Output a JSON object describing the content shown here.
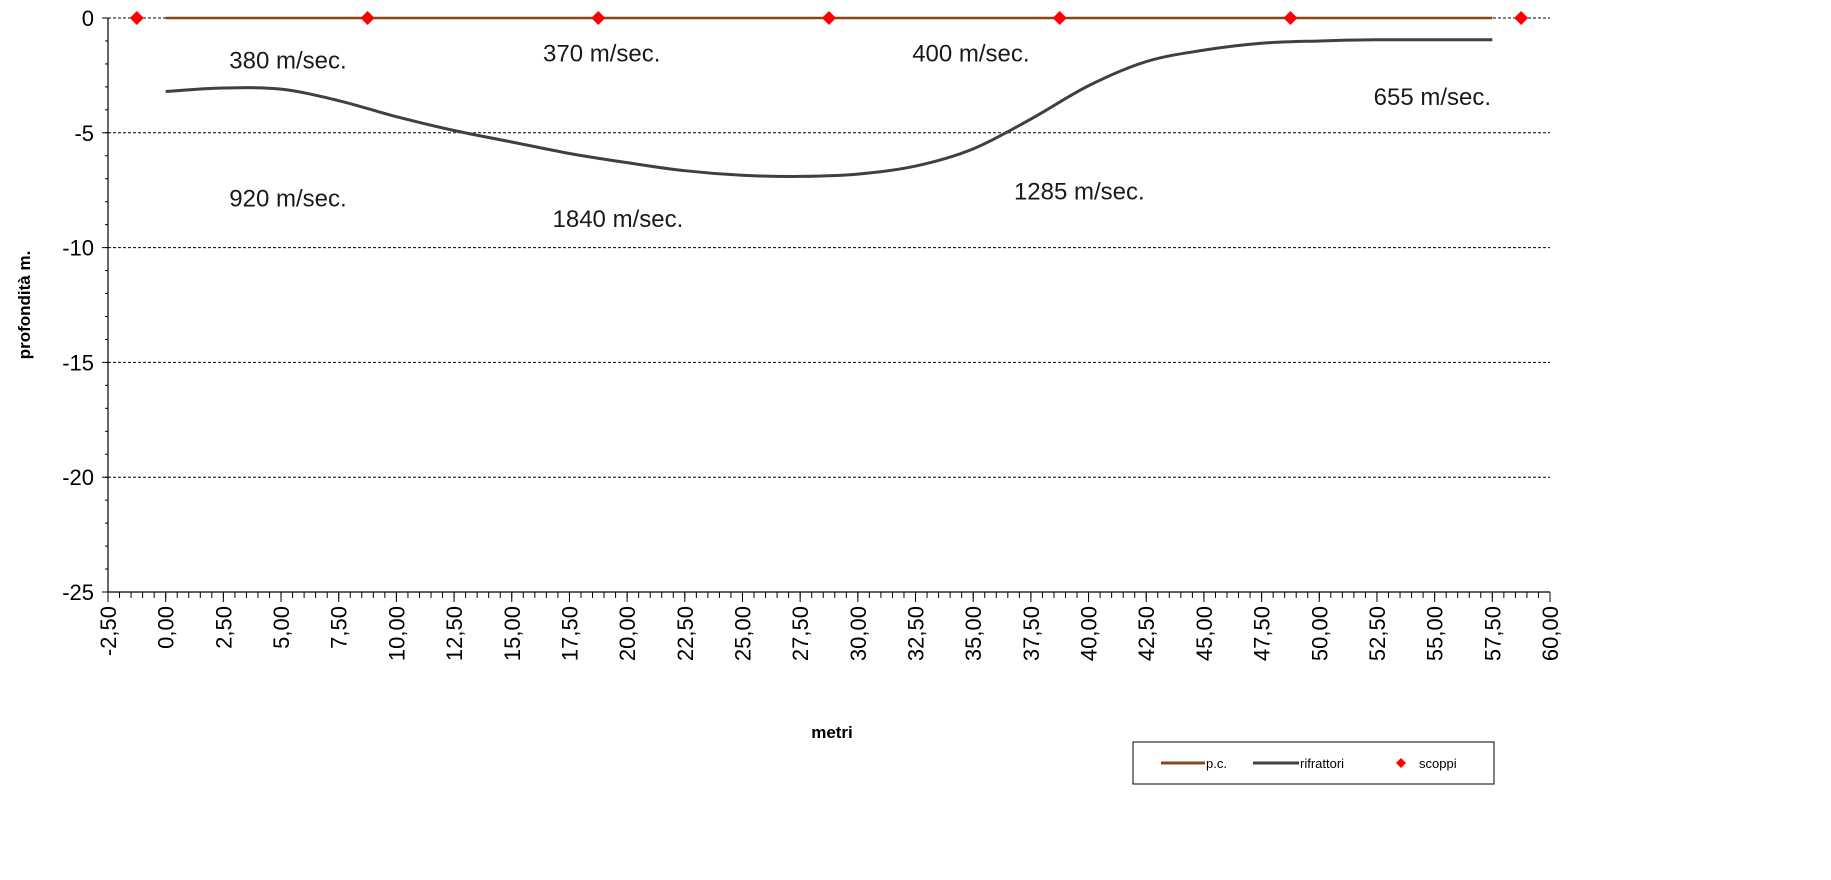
{
  "chart_data": {
    "type": "line",
    "title": "",
    "xlabel": "metri",
    "ylabel": "profondità m.",
    "xlim": [
      -2.5,
      60.0
    ],
    "ylim": [
      -25,
      0
    ],
    "x_ticks": [
      "-2,50",
      "0,00",
      "2,50",
      "5,00",
      "7,50",
      "10,00",
      "12,50",
      "15,00",
      "17,50",
      "20,00",
      "22,50",
      "25,00",
      "27,50",
      "30,00",
      "32,50",
      "35,00",
      "37,50",
      "40,00",
      "42,50",
      "45,00",
      "47,50",
      "50,00",
      "52,50",
      "55,00",
      "57,50",
      "60,00"
    ],
    "x_tick_values": [
      -2.5,
      0,
      2.5,
      5,
      7.5,
      10,
      12.5,
      15,
      17.5,
      20,
      22.5,
      25,
      27.5,
      30,
      32.5,
      35,
      37.5,
      40,
      42.5,
      45,
      47.5,
      50,
      52.5,
      55,
      57.5,
      60
    ],
    "y_ticks": [
      0,
      -5,
      -10,
      -15,
      -20,
      -25
    ],
    "grid": "horizontal-dashed",
    "legend_position": "bottom-right",
    "series": [
      {
        "name": "p.c.",
        "color": "#8B4513",
        "x": [
          0,
          57.5
        ],
        "y": [
          0,
          0
        ]
      },
      {
        "name": "rifrattori",
        "color": "#404040",
        "x": [
          0,
          2.5,
          5,
          7.5,
          10,
          12.5,
          15,
          17.5,
          20,
          22.5,
          25,
          27.5,
          30,
          32.5,
          35,
          37.5,
          40,
          42.5,
          45,
          47.5,
          50,
          52.5,
          55,
          57.5
        ],
        "y": [
          -3.2,
          -3.05,
          -3.1,
          -3.6,
          -4.3,
          -4.9,
          -5.4,
          -5.9,
          -6.3,
          -6.65,
          -6.85,
          -6.9,
          -6.8,
          -6.45,
          -5.7,
          -4.4,
          -2.95,
          -1.9,
          -1.4,
          -1.1,
          -1.0,
          -0.95,
          -0.95,
          -0.95
        ]
      },
      {
        "name": "scoppi",
        "color": "#ff0000",
        "marker": "diamond",
        "x": [
          -1.25,
          8.75,
          18.75,
          28.75,
          38.75,
          48.75,
          58.75
        ],
        "y": [
          0,
          0,
          0,
          0,
          0,
          0,
          0
        ]
      }
    ],
    "annotations": [
      {
        "text": "380 m/sec.",
        "x": 5.3,
        "y": -2.2
      },
      {
        "text": "370 m/sec.",
        "x": 18.9,
        "y": -1.9
      },
      {
        "text": "400 m/sec.",
        "x": 34.9,
        "y": -1.9
      },
      {
        "text": "655 m/sec.",
        "x": 54.9,
        "y": -3.8
      },
      {
        "text": "920 m/sec.",
        "x": 5.3,
        "y": -8.2
      },
      {
        "text": "1840 m/sec.",
        "x": 19.6,
        "y": -9.1
      },
      {
        "text": "1285 m/sec.",
        "x": 39.6,
        "y": -7.9
      }
    ]
  }
}
